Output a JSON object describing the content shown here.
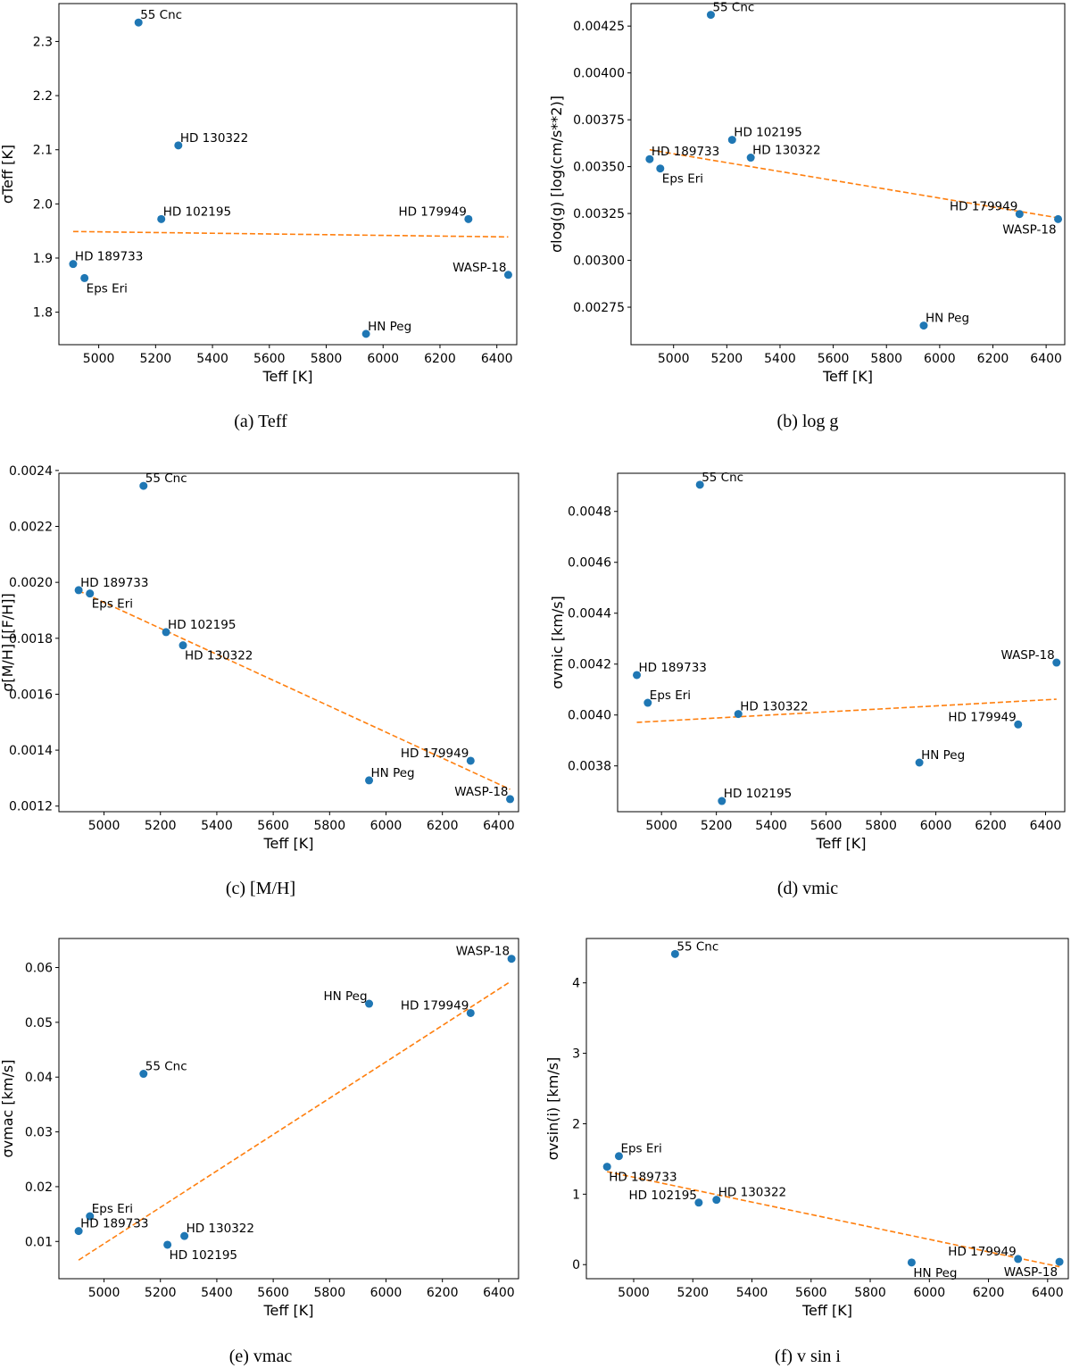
{
  "colors": {
    "point": "#1f77b4",
    "fit": "#ff7f0e",
    "axis": "#000000",
    "background": "#ffffff"
  },
  "chart_data": [
    {
      "type": "scatter",
      "caption": "(a) Teff",
      "xlabel": "Teff [K]",
      "ylabel": "σTeff [K]",
      "xlim": [
        4860,
        6470
      ],
      "ylim": [
        1.74,
        2.37
      ],
      "xticks": [
        5000,
        5200,
        5400,
        5600,
        5800,
        6000,
        6200,
        6400
      ],
      "xtick_labels": [
        "5000",
        "5200",
        "5400",
        "5600",
        "5800",
        "6000",
        "6200",
        "6400"
      ],
      "yticks": [
        1.8,
        1.9,
        2.0,
        2.1,
        2.2,
        2.3
      ],
      "ytick_labels": [
        "1.8",
        "1.9",
        "2.0",
        "2.1",
        "2.2",
        "2.3"
      ],
      "points": [
        {
          "name": "55 Cnc",
          "x": 5140,
          "y": 2.335,
          "label_anchor": "start"
        },
        {
          "name": "HD 130322",
          "x": 5280,
          "y": 2.108,
          "label_anchor": "start"
        },
        {
          "name": "HD 102195",
          "x": 5220,
          "y": 1.972,
          "label_anchor": "start"
        },
        {
          "name": "HD 179949",
          "x": 6300,
          "y": 1.972,
          "label_anchor": "end"
        },
        {
          "name": "HD 189733",
          "x": 4910,
          "y": 1.889,
          "label_anchor": "start"
        },
        {
          "name": "Eps Eri",
          "x": 4950,
          "y": 1.863,
          "label_anchor": "start",
          "label_below": true
        },
        {
          "name": "WASP-18",
          "x": 6440,
          "y": 1.869,
          "label_anchor": "end"
        },
        {
          "name": "HN Peg",
          "x": 5940,
          "y": 1.76,
          "label_anchor": "start"
        }
      ],
      "fit": {
        "x": [
          4910,
          6440
        ],
        "y": [
          1.949,
          1.939
        ]
      }
    },
    {
      "type": "scatter",
      "caption": "(b) log g",
      "xlabel": "Teff [K]",
      "ylabel": "σlog(g) [log(cm/s**2)]",
      "xlim": [
        4840,
        6470
      ],
      "ylim": [
        0.00255,
        0.00437
      ],
      "xticks": [
        5000,
        5200,
        5400,
        5600,
        5800,
        6000,
        6200,
        6400
      ],
      "xtick_labels": [
        "5000",
        "5200",
        "5400",
        "5600",
        "5800",
        "6000",
        "6200",
        "6400"
      ],
      "yticks": [
        0.00275,
        0.003,
        0.00325,
        0.0035,
        0.00375,
        0.004,
        0.00425
      ],
      "ytick_labels": [
        "0.00275",
        "0.00300",
        "0.00325",
        "0.00350",
        "0.00375",
        "0.00400",
        "0.00425"
      ],
      "points": [
        {
          "name": "55 Cnc",
          "x": 5140,
          "y": 0.00431,
          "label_anchor": "start"
        },
        {
          "name": "HD 102195",
          "x": 5220,
          "y": 0.003643,
          "label_anchor": "start"
        },
        {
          "name": "HD 130322",
          "x": 5290,
          "y": 0.003548,
          "label_anchor": "start"
        },
        {
          "name": "HD 189733",
          "x": 4910,
          "y": 0.00354,
          "label_anchor": "start"
        },
        {
          "name": "Eps Eri",
          "x": 4950,
          "y": 0.00349,
          "label_anchor": "start",
          "label_below": true
        },
        {
          "name": "HD 179949",
          "x": 6300,
          "y": 0.003247,
          "label_anchor": "end"
        },
        {
          "name": "WASP-18",
          "x": 6445,
          "y": 0.00322,
          "label_anchor": "end",
          "label_below": true
        },
        {
          "name": "HN Peg",
          "x": 5940,
          "y": 0.002652,
          "label_anchor": "start"
        }
      ],
      "fit": {
        "x": [
          4910,
          6440
        ],
        "y": [
          0.00359,
          0.003228
        ]
      }
    },
    {
      "type": "scatter",
      "caption": "(c) [M/H]",
      "xlabel": "Teff [K]",
      "ylabel": "σ[M/H] [[F/H]]",
      "xlim": [
        4840,
        6470
      ],
      "ylim": [
        0.00118,
        0.00239
      ],
      "xticks": [
        5000,
        5200,
        5400,
        5600,
        5800,
        6000,
        6200,
        6400
      ],
      "xtick_labels": [
        "5000",
        "5200",
        "5400",
        "5600",
        "5800",
        "6000",
        "6200",
        "6400"
      ],
      "yticks": [
        0.0012,
        0.0014,
        0.0016,
        0.0018,
        0.002,
        0.0022,
        0.0024
      ],
      "ytick_labels": [
        "0.0012",
        "0.0014",
        "0.0016",
        "0.0018",
        "0.0020",
        "0.0022",
        "0.0024"
      ],
      "points": [
        {
          "name": "55 Cnc",
          "x": 5140,
          "y": 0.002345,
          "label_anchor": "start"
        },
        {
          "name": "HD 189733",
          "x": 4910,
          "y": 0.001972,
          "label_anchor": "start"
        },
        {
          "name": "Eps Eri",
          "x": 4950,
          "y": 0.00196,
          "label_anchor": "start",
          "label_below": true
        },
        {
          "name": "HD 102195",
          "x": 5220,
          "y": 0.001822,
          "label_anchor": "start"
        },
        {
          "name": "HD 130322",
          "x": 5280,
          "y": 0.001775,
          "label_anchor": "start",
          "label_below": true
        },
        {
          "name": "HD 179949",
          "x": 6300,
          "y": 0.001362,
          "label_anchor": "end"
        },
        {
          "name": "HN Peg",
          "x": 5940,
          "y": 0.001292,
          "label_anchor": "start"
        },
        {
          "name": "WASP-18",
          "x": 6440,
          "y": 0.001225,
          "label_anchor": "end"
        }
      ],
      "fit": {
        "x": [
          4910,
          6440
        ],
        "y": [
          0.00197,
          0.00126
        ]
      }
    },
    {
      "type": "scatter",
      "caption": "(d) vmic",
      "xlabel": "Teff [K]",
      "ylabel": "σvmic [km/s]",
      "xlim": [
        4840,
        6470
      ],
      "ylim": [
        0.00362,
        0.00495
      ],
      "xticks": [
        5000,
        5200,
        5400,
        5600,
        5800,
        6000,
        6200,
        6400
      ],
      "xtick_labels": [
        "5000",
        "5200",
        "5400",
        "5600",
        "5800",
        "6000",
        "6200",
        "6400"
      ],
      "yticks": [
        0.0038,
        0.004,
        0.0042,
        0.0044,
        0.0046,
        0.0048
      ],
      "ytick_labels": [
        "0.0038",
        "0.0040",
        "0.0042",
        "0.0044",
        "0.0046",
        "0.0048"
      ],
      "points": [
        {
          "name": "55 Cnc",
          "x": 5140,
          "y": 0.004905,
          "label_anchor": "start"
        },
        {
          "name": "HD 189733",
          "x": 4910,
          "y": 0.004157,
          "label_anchor": "start"
        },
        {
          "name": "Eps Eri",
          "x": 4950,
          "y": 0.004048,
          "label_anchor": "start"
        },
        {
          "name": "HD 130322",
          "x": 5280,
          "y": 0.004004,
          "label_anchor": "start"
        },
        {
          "name": "WASP-18",
          "x": 6440,
          "y": 0.004206,
          "label_anchor": "end"
        },
        {
          "name": "HD 179949",
          "x": 6300,
          "y": 0.003963,
          "label_anchor": "end"
        },
        {
          "name": "HN Peg",
          "x": 5940,
          "y": 0.003813,
          "label_anchor": "start"
        },
        {
          "name": "HD 102195",
          "x": 5220,
          "y": 0.003662,
          "label_anchor": "start"
        }
      ],
      "fit": {
        "x": [
          4910,
          6440
        ],
        "y": [
          0.003971,
          0.004062
        ]
      }
    },
    {
      "type": "scatter",
      "caption": "(e) vmac",
      "xlabel": "Teff [K]",
      "ylabel": "σvmac [km/s]",
      "xlim": [
        4840,
        6470
      ],
      "ylim": [
        0.0032,
        0.0653
      ],
      "xticks": [
        5000,
        5200,
        5400,
        5600,
        5800,
        6000,
        6200,
        6400
      ],
      "xtick_labels": [
        "5000",
        "5200",
        "5400",
        "5600",
        "5800",
        "6000",
        "6200",
        "6400"
      ],
      "yticks": [
        0.01,
        0.02,
        0.03,
        0.04,
        0.05,
        0.06
      ],
      "ytick_labels": [
        "0.01",
        "0.02",
        "0.03",
        "0.04",
        "0.05",
        "0.06"
      ],
      "points": [
        {
          "name": "WASP-18",
          "x": 6445,
          "y": 0.0616,
          "label_anchor": "end"
        },
        {
          "name": "HN Peg",
          "x": 5940,
          "y": 0.0534,
          "label_anchor": "end"
        },
        {
          "name": "HD 179949",
          "x": 6300,
          "y": 0.0517,
          "label_anchor": "end"
        },
        {
          "name": "55 Cnc",
          "x": 5140,
          "y": 0.0406,
          "label_anchor": "start"
        },
        {
          "name": "Eps Eri",
          "x": 4950,
          "y": 0.0146,
          "label_anchor": "start"
        },
        {
          "name": "HD 189733",
          "x": 4910,
          "y": 0.0119,
          "label_anchor": "start"
        },
        {
          "name": "HD 130322",
          "x": 5285,
          "y": 0.011,
          "label_anchor": "start"
        },
        {
          "name": "HD 102195",
          "x": 5225,
          "y": 0.0094,
          "label_anchor": "start",
          "label_below": true
        }
      ],
      "fit": {
        "x": [
          4910,
          6440
        ],
        "y": [
          0.0066,
          0.0574
        ]
      }
    },
    {
      "type": "scatter",
      "caption": "(f) v sin i",
      "xlabel": "Teff [K]",
      "ylabel": "σvsin(i) [km/s]",
      "xlim": [
        4840,
        6470
      ],
      "ylim": [
        -0.2,
        4.63
      ],
      "xticks": [
        5000,
        5200,
        5400,
        5600,
        5800,
        6000,
        6200,
        6400
      ],
      "xtick_labels": [
        "5000",
        "5200",
        "5400",
        "5600",
        "5800",
        "6000",
        "6200",
        "6400"
      ],
      "yticks": [
        0,
        1,
        2,
        3,
        4
      ],
      "ytick_labels": [
        "0",
        "1",
        "2",
        "3",
        "4"
      ],
      "points": [
        {
          "name": "55 Cnc",
          "x": 5140,
          "y": 4.41,
          "label_anchor": "start"
        },
        {
          "name": "Eps Eri",
          "x": 4950,
          "y": 1.54,
          "label_anchor": "start"
        },
        {
          "name": "HD 189733",
          "x": 4910,
          "y": 1.39,
          "label_anchor": "start",
          "label_below": true
        },
        {
          "name": "HD 102195",
          "x": 5220,
          "y": 0.88,
          "label_anchor": "end"
        },
        {
          "name": "HD 130322",
          "x": 5280,
          "y": 0.92,
          "label_anchor": "start"
        },
        {
          "name": "HN Peg",
          "x": 5940,
          "y": 0.03,
          "label_anchor": "start",
          "label_below": true
        },
        {
          "name": "HD 179949",
          "x": 6300,
          "y": 0.08,
          "label_anchor": "end"
        },
        {
          "name": "WASP-18",
          "x": 6440,
          "y": 0.04,
          "label_anchor": "end",
          "label_below": true
        }
      ],
      "fit": {
        "x": [
          4910,
          6440
        ],
        "y": [
          1.32,
          -0.03
        ]
      }
    }
  ]
}
